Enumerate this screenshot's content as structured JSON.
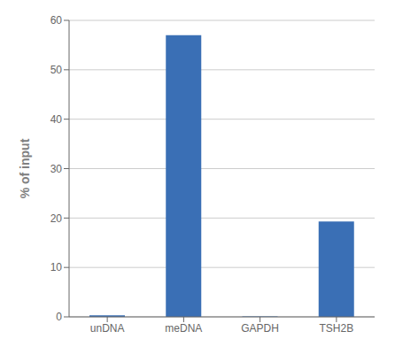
{
  "chart_data": {
    "type": "bar",
    "categories": [
      "unDNA",
      "meDNA",
      "GAPDH",
      "TSH2B"
    ],
    "values": [
      0.3,
      57.0,
      0.1,
      19.3
    ],
    "color": "#3A6FB5",
    "ylabel": "% of input",
    "ylim": [
      0,
      60
    ],
    "yticks": [
      0,
      10,
      20,
      30,
      40,
      50,
      60
    ],
    "grid": true
  }
}
